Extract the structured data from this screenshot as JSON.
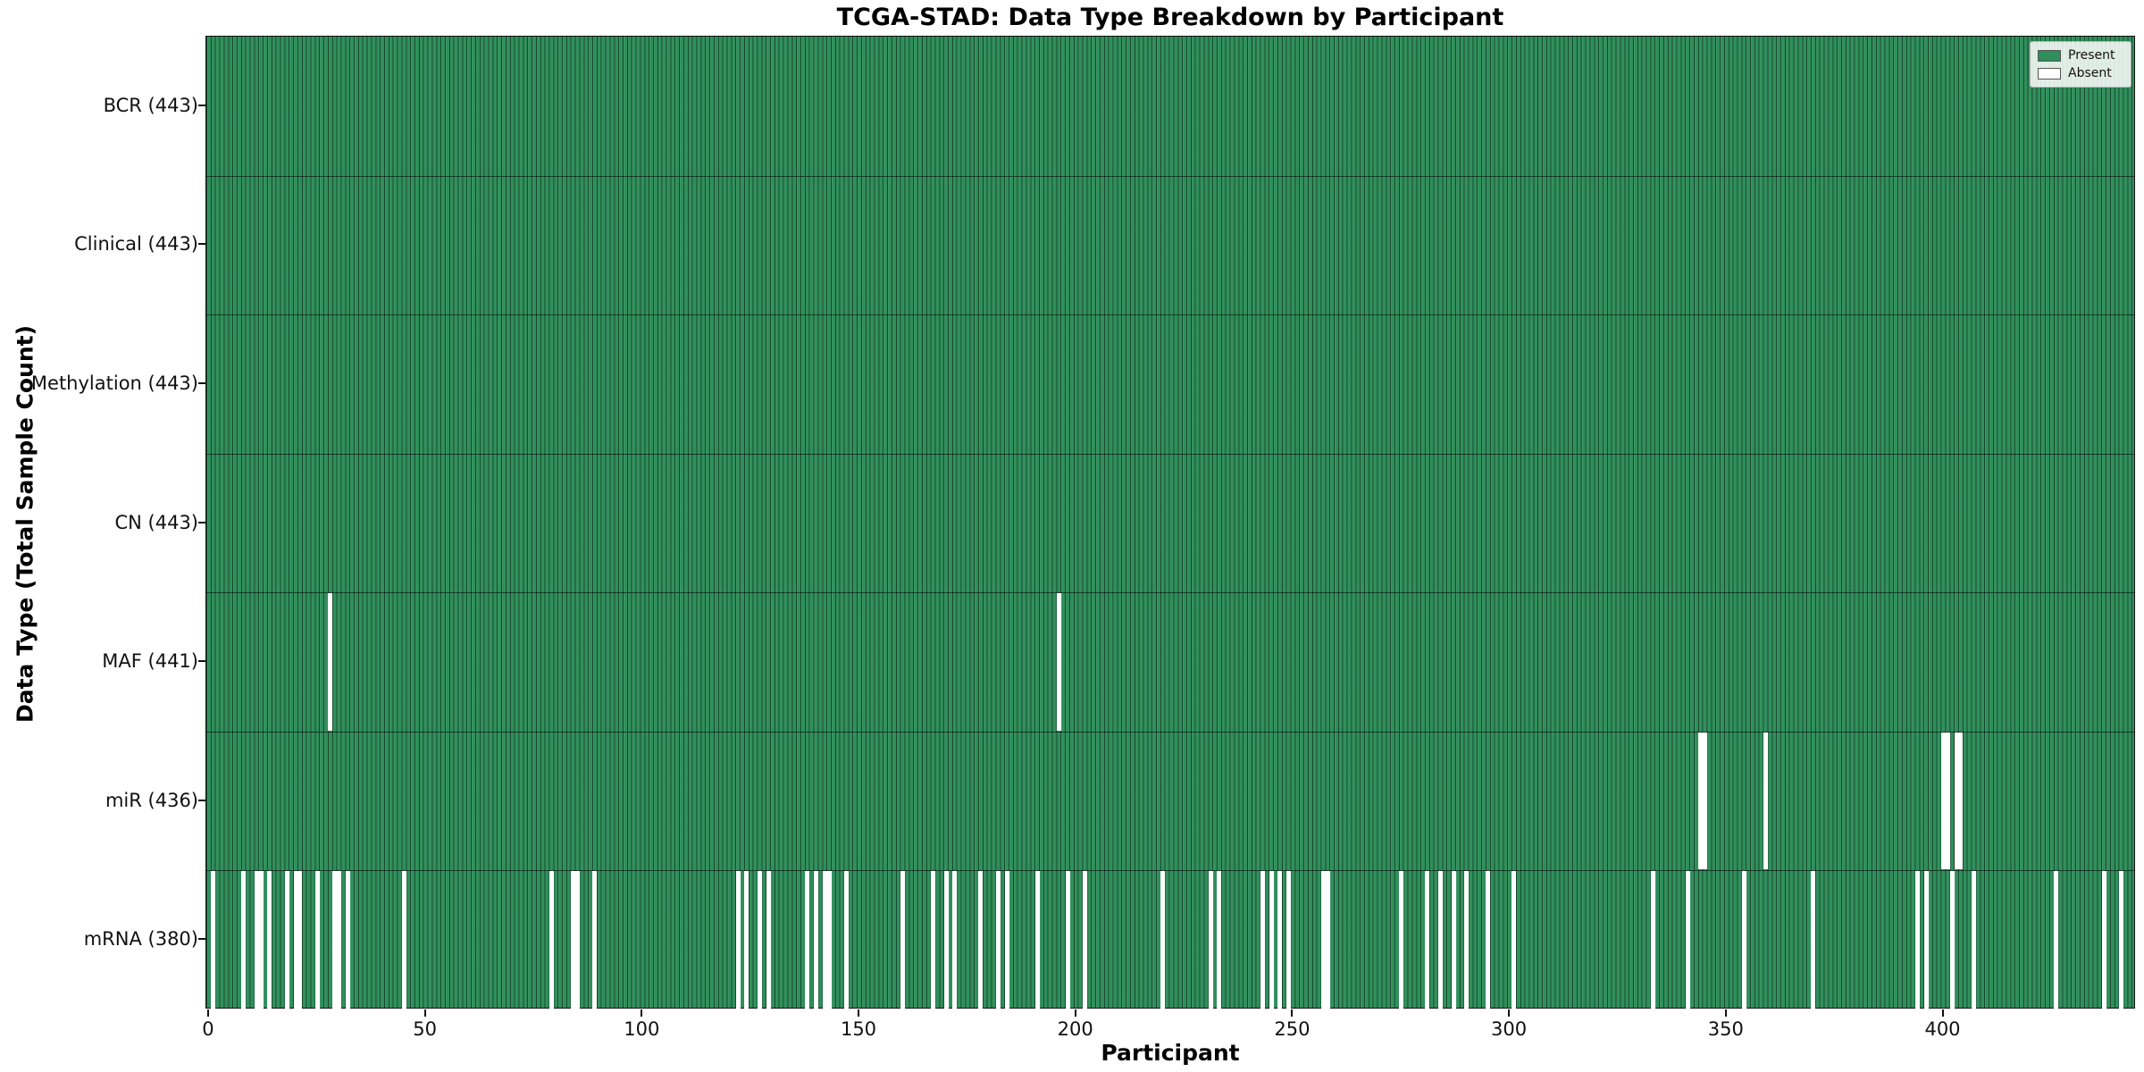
{
  "title": "TCGA-STAD: Data Type Breakdown by Participant",
  "axes": {
    "xlabel": "Participant",
    "ylabel": "Data Type (Total Sample Count)"
  },
  "legend": {
    "items": [
      {
        "label": "Present",
        "color": "#2f8f5b"
      },
      {
        "label": "Absent",
        "color": "#ffffff"
      }
    ]
  },
  "colors": {
    "present": "#2f8f5b",
    "absent": "#ffffff",
    "bar_edge": "rgba(0,0,0,0.5)",
    "spine": "#111111",
    "background": "#ffffff"
  },
  "chart_data": {
    "type": "heatmap",
    "title": "TCGA-STAD: Data Type Breakdown by Participant",
    "xlabel": "Participant",
    "ylabel": "Data Type (Total Sample Count)",
    "x_ticks": [
      0,
      50,
      100,
      150,
      200,
      250,
      300,
      350,
      400
    ],
    "x_range": [
      0,
      443
    ],
    "n_participants": 443,
    "legend_entries": [
      "Present",
      "Absent"
    ],
    "rows": [
      {
        "label": "BCR",
        "total": 443,
        "tick_label": "BCR (443)",
        "absent_participants": []
      },
      {
        "label": "Clinical",
        "total": 443,
        "tick_label": "Clinical (443)",
        "absent_participants": []
      },
      {
        "label": "Methylation",
        "total": 443,
        "tick_label": "Methylation (443)",
        "absent_participants": []
      },
      {
        "label": "CN",
        "total": 443,
        "tick_label": "CN (443)",
        "absent_participants": []
      },
      {
        "label": "MAF",
        "total": 441,
        "tick_label": "MAF (441)",
        "absent_participants": [
          28,
          196
        ]
      },
      {
        "label": "miR",
        "total": 436,
        "tick_label": "miR (436)",
        "absent_participants": [
          344,
          345,
          359,
          400,
          401,
          403,
          404
        ]
      },
      {
        "label": "mRNA",
        "total": 380,
        "tick_label": "mRNA (380)",
        "absent_participants": [
          1,
          8,
          11,
          12,
          14,
          18,
          20,
          21,
          25,
          29,
          30,
          32,
          45,
          79,
          84,
          85,
          89,
          122,
          124,
          127,
          129,
          138,
          140,
          142,
          143,
          147,
          160,
          167,
          170,
          172,
          178,
          182,
          184,
          191,
          198,
          202,
          220,
          231,
          233,
          243,
          245,
          247,
          249,
          257,
          258,
          275,
          281,
          284,
          287,
          290,
          295,
          301,
          333,
          341,
          354,
          370,
          394,
          396,
          402,
          407,
          426,
          437,
          441
        ]
      }
    ]
  }
}
